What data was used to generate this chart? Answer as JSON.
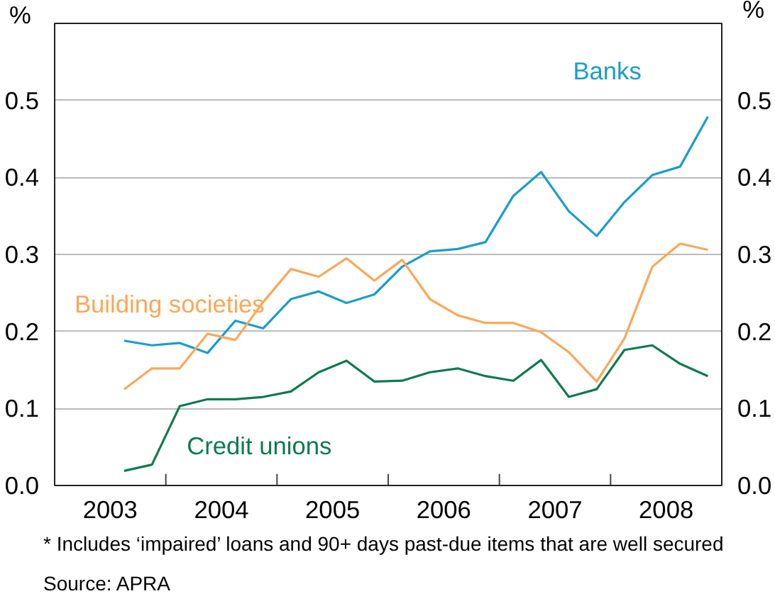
{
  "chart_data": {
    "type": "line",
    "ylabel": "%",
    "y2label": "%",
    "x": [
      2003.625,
      2003.875,
      2004.125,
      2004.375,
      2004.625,
      2004.875,
      2005.125,
      2005.375,
      2005.625,
      2005.875,
      2006.125,
      2006.375,
      2006.625,
      2006.875,
      2007.125,
      2007.375,
      2007.625,
      2007.875,
      2008.125,
      2008.375,
      2008.625,
      2008.875
    ],
    "xlim": [
      2003,
      2009
    ],
    "xticks": [
      {
        "value": 2003.5,
        "label": "2003"
      },
      {
        "value": 2004,
        "label": null
      },
      {
        "value": 2004.5,
        "label": "2004"
      },
      {
        "value": 2005,
        "label": null
      },
      {
        "value": 2005.5,
        "label": "2005"
      },
      {
        "value": 2006,
        "label": null
      },
      {
        "value": 2006.5,
        "label": "2006"
      },
      {
        "value": 2007,
        "label": null
      },
      {
        "value": 2007.5,
        "label": "2007"
      },
      {
        "value": 2008,
        "label": null
      },
      {
        "value": 2008.5,
        "label": "2008"
      }
    ],
    "ylim": [
      0,
      0.6
    ],
    "yticks": [
      {
        "value": 0,
        "label": "0.0"
      },
      {
        "value": 0.1,
        "label": "0.1"
      },
      {
        "value": 0.2,
        "label": "0.2"
      },
      {
        "value": 0.3,
        "label": "0.3"
      },
      {
        "value": 0.4,
        "label": "0.4"
      },
      {
        "value": 0.5,
        "label": "0.5"
      }
    ],
    "y2lim": [
      0,
      0.6
    ],
    "y2ticks": [
      {
        "value": 0,
        "label": "0.0"
      },
      {
        "value": 0.1,
        "label": "0.1"
      },
      {
        "value": 0.2,
        "label": "0.2"
      },
      {
        "value": 0.3,
        "label": "0.3"
      },
      {
        "value": 0.4,
        "label": "0.4"
      },
      {
        "value": 0.5,
        "label": "0.5"
      }
    ],
    "grid": "y",
    "series": [
      {
        "name": "Banks",
        "color": "#1b9dc8",
        "values": [
          0.188,
          0.182,
          0.185,
          0.172,
          0.214,
          0.204,
          0.242,
          0.252,
          0.237,
          0.248,
          0.284,
          0.304,
          0.307,
          0.316,
          0.376,
          0.407,
          0.356,
          0.324,
          0.368,
          0.403,
          0.414,
          0.479
        ]
      },
      {
        "name": "Building societies",
        "color": "#f9a85a",
        "values": [
          0.125,
          0.152,
          0.152,
          0.197,
          0.189,
          0.238,
          0.281,
          0.271,
          0.295,
          0.266,
          0.293,
          0.242,
          0.221,
          0.211,
          0.211,
          0.199,
          0.173,
          0.135,
          0.191,
          0.284,
          0.314,
          0.306
        ]
      },
      {
        "name": "Credit unions",
        "color": "#0f7a4f",
        "values": [
          0.019,
          0.027,
          0.103,
          0.112,
          0.112,
          0.115,
          0.122,
          0.147,
          0.162,
          0.135,
          0.136,
          0.147,
          0.152,
          0.142,
          0.136,
          0.163,
          0.115,
          0.125,
          0.176,
          0.182,
          0.158,
          0.142
        ]
      }
    ],
    "annotations": [
      "*   Includes ‘impaired’ loans and 90+ days past-due items that are well secured",
      "Source: APRA"
    ]
  }
}
